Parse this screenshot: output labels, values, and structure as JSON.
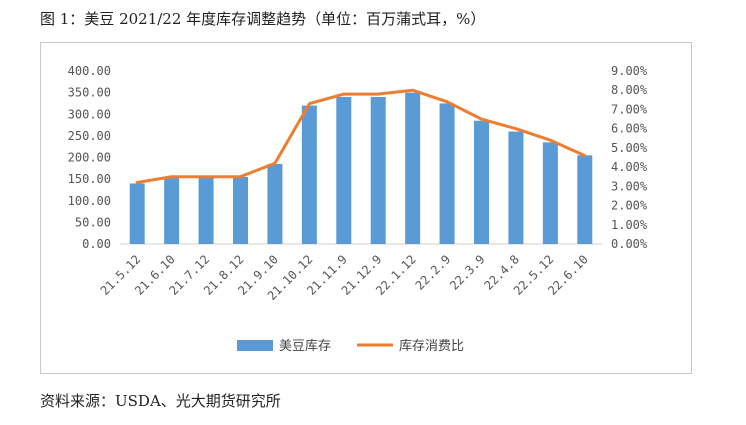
{
  "figure": {
    "title": "图 1：美豆 2021/22 年度库存调整趋势（单位：百万蒲式耳，%）",
    "source": "资料来源：USDA、光大期货研究所"
  },
  "chart_data": {
    "type": "bar",
    "categories": [
      "21.5.12",
      "21.6.10",
      "21.7.12",
      "21.8.12",
      "21.9.10",
      "21.10.12",
      "21.11.9",
      "21.12.9",
      "22.1.12",
      "22.2.9",
      "22.3.9",
      "22.4.8",
      "22.5.12",
      "22.6.10"
    ],
    "series": [
      {
        "name": "美豆库存",
        "type": "bar",
        "axis": "left",
        "color": "#5b9bd5",
        "values": [
          140,
          155,
          155,
          155,
          185,
          320,
          340,
          340,
          350,
          325,
          285,
          260,
          235,
          205
        ]
      },
      {
        "name": "库存消费比",
        "type": "line",
        "axis": "right",
        "color": "#ed7d31",
        "values": [
          3.2,
          3.5,
          3.5,
          3.5,
          4.2,
          7.3,
          7.8,
          7.8,
          8.0,
          7.4,
          6.5,
          6.0,
          5.4,
          4.6
        ]
      }
    ],
    "y_left": {
      "ticks": [
        "0.00",
        "50.00",
        "100.00",
        "150.00",
        "200.00",
        "250.00",
        "300.00",
        "350.00",
        "400.00"
      ],
      "min": 0,
      "max": 400
    },
    "y_right": {
      "ticks": [
        "0.00%",
        "1.00%",
        "2.00%",
        "3.00%",
        "4.00%",
        "5.00%",
        "6.00%",
        "7.00%",
        "8.00%",
        "9.00%"
      ],
      "min": 0,
      "max": 9
    },
    "grid": false,
    "legend": "bottom"
  }
}
